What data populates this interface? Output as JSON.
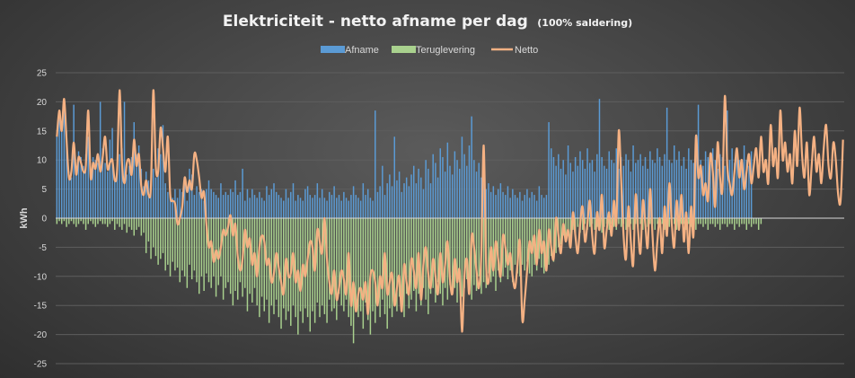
{
  "chart_data": {
    "type": "bar",
    "title": "Elektriciteit  - netto afname per dag",
    "subtitle": "(100% saldering)",
    "ylabel": "kWh",
    "xlabel": "",
    "ylim": [
      -25,
      25
    ],
    "yticks": [
      25,
      20,
      15,
      10,
      5,
      0,
      -5,
      -10,
      -15,
      -20,
      -25
    ],
    "grid": true,
    "legend_position": "top",
    "colors": {
      "afname": "#5b9bd5",
      "teruglevering": "#a9d18e",
      "netto": "#f4b183",
      "grid": "#5e5e5e",
      "zero_line": "#d9d9d9"
    },
    "series": [
      {
        "name": "Afname",
        "type": "bar",
        "values": [
          14.5,
          18.5,
          16.0,
          20.5,
          15.0,
          8.0,
          7.0,
          19.5,
          9.0,
          11.5,
          10.5,
          9.0,
          11.0,
          14.0,
          8.0,
          10.5,
          10.0,
          9.5,
          20.0,
          12.0,
          9.5,
          8.0,
          13.5,
          15.5,
          6.5,
          9.0,
          11.0,
          12.0,
          20.0,
          7.5,
          9.0,
          10.5,
          16.5,
          11.0,
          12.5,
          8.5,
          5.5,
          8.0,
          6.5,
          6.5,
          8.5,
          7.0,
          12.0,
          11.0,
          16.0,
          6.0,
          4.5,
          4.0,
          3.5,
          5.0,
          3.5,
          5.0,
          4.5,
          6.0,
          3.0,
          8.5,
          7.5,
          4.0,
          5.5,
          4.5,
          5.0,
          3.0,
          5.0,
          6.5,
          5.0,
          4.5,
          4.0,
          3.5,
          6.0,
          4.0,
          4.5,
          4.0,
          5.0,
          4.5,
          6.5,
          4.0,
          4.5,
          8.5,
          3.0,
          5.0,
          3.5,
          5.0,
          4.0,
          3.5,
          4.5,
          3.5,
          3.0,
          5.5,
          4.0,
          5.0,
          6.0,
          4.5,
          4.0,
          3.5,
          3.0,
          5.0,
          3.5,
          4.5,
          6.0,
          3.0,
          4.0,
          3.5,
          3.0,
          5.0,
          5.5,
          4.0,
          3.5,
          4.0,
          6.0,
          3.5,
          5.0,
          3.5,
          3.0,
          4.5,
          4.0,
          5.5,
          3.5,
          4.0,
          3.0,
          4.5,
          3.5,
          3.0,
          4.0,
          5.5,
          4.0,
          3.5,
          3.0,
          6.0,
          4.0,
          5.0,
          3.5,
          3.0,
          18.5,
          4.5,
          5.5,
          9.0,
          4.0,
          6.0,
          7.5,
          5.5,
          14.0,
          6.5,
          8.0,
          4.5,
          6.0,
          7.0,
          5.5,
          7.5,
          9.0,
          6.0,
          8.5,
          7.0,
          5.0,
          10.0,
          8.5,
          6.0,
          11.0,
          9.5,
          7.0,
          12.0,
          10.5,
          8.0,
          13.0,
          9.0,
          7.5,
          11.5,
          10.0,
          8.5,
          14.0,
          11.0,
          9.0,
          12.5,
          17.5,
          10.0,
          8.0,
          9.5,
          7.0,
          6.5,
          5.0,
          6.0,
          4.5,
          5.5,
          4.0,
          5.0,
          6.0,
          4.5,
          4.0,
          5.5,
          3.5,
          5.0,
          4.0,
          3.5,
          4.5,
          3.0,
          4.0,
          5.0,
          3.5,
          4.5,
          4.0,
          3.0,
          5.5,
          4.0,
          3.5,
          4.0,
          16.5,
          12.0,
          10.5,
          9.0,
          11.0,
          8.5,
          10.0,
          7.5,
          12.5,
          9.5,
          8.0,
          10.5,
          9.0,
          11.5,
          10.0,
          8.5,
          12.0,
          9.5,
          10.0,
          8.0,
          11.0,
          20.5,
          10.5,
          9.0,
          8.5,
          11.5,
          10.0,
          9.5,
          12.0,
          8.5,
          10.5,
          9.0,
          11.0,
          10.0,
          8.0,
          12.5,
          9.5,
          10.0,
          11.0,
          9.0,
          10.5,
          8.5,
          11.5,
          10.0,
          9.5,
          12.0,
          10.5,
          9.0,
          11.0,
          19.0,
          10.0,
          9.5,
          12.5,
          10.0,
          11.5,
          9.0,
          10.5,
          8.5,
          12.0,
          10.0,
          9.5,
          11.0,
          19.5,
          10.0,
          9.0,
          11.5,
          10.5,
          9.5,
          12.0,
          10.0,
          8.5,
          11.0,
          10.5,
          9.0,
          18.5,
          10.0,
          12.0,
          9.5,
          11.0,
          10.0,
          8.5,
          12.5,
          10.0,
          9.0,
          11.5
        ]
      },
      {
        "name": "Teruglevering",
        "type": "bar",
        "values": [
          -1,
          -0.5,
          -1,
          -0.5,
          -1.5,
          -1,
          -0.5,
          -1,
          -1.5,
          -1,
          -0.5,
          -1,
          -2,
          -1,
          -0.5,
          -1,
          -1.5,
          -1,
          -0.5,
          -1,
          -1,
          -1.5,
          -1,
          -0.5,
          -2,
          -1,
          -1.5,
          -2,
          -1,
          -2.5,
          -1.5,
          -2,
          -3,
          -2,
          -1.5,
          -3,
          -2.5,
          -6,
          -4,
          -7,
          -5,
          -6.5,
          -8,
          -7,
          -6,
          -9,
          -8,
          -10,
          -7.5,
          -9,
          -8.5,
          -11,
          -9,
          -10,
          -12,
          -8,
          -10.5,
          -9,
          -11,
          -13,
          -10,
          -12.5,
          -9.5,
          -11,
          -12,
          -10,
          -13.5,
          -11.5,
          -10,
          -14,
          -12,
          -11,
          -13,
          -15,
          -12.5,
          -14,
          -11,
          -13.5,
          -12,
          -16,
          -13,
          -14.5,
          -12,
          -15,
          -17,
          -13.5,
          -16,
          -14,
          -18,
          -15,
          -16.5,
          -14,
          -17,
          -19,
          -15.5,
          -17.5,
          -16,
          -18.5,
          -15,
          -17,
          -20,
          -16,
          -18,
          -15.5,
          -17,
          -19.5,
          -16,
          -18,
          -14.5,
          -17,
          -15,
          -16.5,
          -18,
          -14,
          -16,
          -15.5,
          -17.5,
          -13,
          -15,
          -16,
          -14,
          -17,
          -18.5,
          -21.5,
          -15,
          -17,
          -16,
          -19,
          -14.5,
          -17.5,
          -20,
          -16,
          -18,
          -15,
          -17,
          -14,
          -16.5,
          -19,
          -15.5,
          -17,
          -14,
          -16,
          -13.5,
          -15,
          -17,
          -13,
          -15.5,
          -14,
          -12.5,
          -16,
          -13,
          -15,
          -12,
          -14,
          -16.5,
          -13,
          -12,
          -14.5,
          -11,
          -13,
          -15,
          -12,
          -14,
          -11.5,
          -13,
          -12,
          -14.5,
          -11,
          -13.5,
          -12,
          -10.5,
          -13,
          -14,
          -11.5,
          -12.5,
          -10,
          -13,
          -11,
          -12,
          -9.5,
          -11,
          -10,
          -12.5,
          -9,
          -11,
          -10,
          -8.5,
          -10.5,
          -9,
          -11,
          -8,
          -9.5,
          -10,
          -8,
          -9,
          -7.5,
          -9.5,
          -10,
          -8,
          -9,
          -7,
          -8.5,
          -9.5,
          -7,
          -8,
          -6.5,
          -7.5,
          -6,
          -5,
          -4.5,
          -3,
          -4,
          -2.5,
          -3.5,
          -2,
          -3,
          -1.5,
          -2.5,
          -2,
          -1,
          -2,
          -1.5,
          -1,
          -2,
          -1.5,
          -1,
          -2.5,
          -1.5,
          -1,
          -2,
          -1,
          -1.5,
          -2,
          -1,
          -1.5,
          -1,
          -2,
          -1.5,
          -1,
          -2,
          -1,
          -1.5,
          -1,
          -2,
          -1,
          -1.5,
          -1,
          -1,
          -2,
          -1,
          -1.5,
          -1,
          -2,
          -1,
          -1.5,
          -1,
          -1,
          -2,
          -1.5,
          -1,
          -1,
          -2,
          -1,
          -1.5,
          -1,
          -2,
          -1,
          -1,
          -1.5,
          -1,
          -2,
          -1,
          -1,
          -1.5,
          -1,
          -2,
          -1,
          -1,
          -1.5,
          -1,
          -1,
          -2,
          -1,
          -1.5,
          -1,
          -1,
          -2,
          -1,
          -1.5,
          -1,
          -1,
          -2,
          -1
        ]
      },
      {
        "name": "Netto",
        "type": "line",
        "values": [
          14,
          18.5,
          15,
          20.5,
          13.5,
          7,
          8,
          13,
          7.5,
          10.5,
          9.5,
          8,
          9,
          18.5,
          7,
          9.5,
          8.5,
          11,
          8,
          10.5,
          14,
          8.5,
          9.5,
          10,
          6.5,
          8.5,
          22,
          9.5,
          6,
          9.5,
          10,
          7.5,
          13.5,
          9,
          11,
          5.5,
          4,
          6.5,
          4,
          5.5,
          22,
          9,
          8,
          15.5,
          12,
          8,
          14,
          4,
          3,
          2.5,
          -1,
          0,
          2,
          7,
          4.5,
          6.5,
          5,
          11,
          10,
          7,
          3.5,
          4.5,
          -1,
          -5,
          -4,
          -7.5,
          -5.5,
          -7,
          -5,
          -2,
          -3,
          -1.5,
          0.5,
          -3,
          -1,
          -6.5,
          -9,
          -7,
          -2,
          -5,
          -3.5,
          -8,
          -6,
          -10,
          -5,
          -3,
          -4,
          -8,
          -7,
          -11,
          -9.5,
          -6,
          -8.5,
          -11,
          -13,
          -7,
          -10,
          -9.5,
          -6,
          -11,
          -9,
          -12.5,
          -8,
          -10,
          -7,
          -4,
          -5,
          -9,
          -2,
          -4,
          -6,
          0,
          -7,
          -11,
          -13,
          -9,
          -14,
          -12,
          -9,
          -10.5,
          -13,
          -6,
          -15,
          -11,
          -16,
          -13,
          -12,
          -14,
          -11,
          -16.5,
          -10,
          -9,
          -11,
          -15,
          -10,
          -12,
          -6,
          -13,
          -11,
          -9.5,
          -15,
          -12,
          -10,
          -16,
          -8,
          -11,
          -13,
          -7,
          -9,
          -12,
          -6,
          -14,
          -8,
          -5,
          -9.5,
          -12,
          -7,
          -10,
          -13,
          -6,
          -11,
          -8,
          -4,
          -10.5,
          -13,
          -7,
          -11,
          -9,
          -19.5,
          -10,
          -7,
          -13,
          -3,
          -5,
          -9,
          -12,
          -6,
          12.5,
          -8,
          -11,
          -5,
          -9,
          -4,
          -7,
          -10,
          -3,
          -5,
          -8,
          -6,
          -10,
          -12,
          -8,
          -4,
          -17.5,
          -14,
          -9,
          -4,
          -6,
          -3,
          -8,
          -2,
          -6,
          -4,
          -9,
          -2,
          -5,
          -7,
          0,
          -3,
          -6,
          -1,
          -4,
          -2,
          -5,
          1,
          -3,
          -6,
          -1,
          2,
          -4,
          -1,
          3,
          -3,
          -6,
          1,
          -2,
          4,
          -5,
          -2,
          1,
          -3,
          3,
          -1,
          15,
          6.5,
          -3,
          -7,
          2,
          -4,
          -8,
          4,
          -2,
          -6,
          3,
          -1,
          -5,
          5,
          -3,
          -9,
          -4,
          0,
          -6,
          2,
          -3,
          6,
          -1,
          -5,
          3,
          -2,
          4,
          -4,
          1,
          -6,
          2,
          -3,
          14,
          7,
          9,
          4,
          6,
          3,
          11,
          8,
          2,
          13,
          7,
          5,
          21,
          9,
          6,
          4,
          8,
          12,
          7,
          10,
          5,
          8,
          11,
          6,
          9,
          12,
          7,
          14,
          8,
          10,
          6,
          16,
          9,
          12,
          7,
          18.5,
          10,
          13,
          8,
          11,
          6,
          15,
          9,
          19,
          11,
          7,
          13,
          4,
          9,
          14,
          8,
          11,
          6,
          12,
          16,
          9,
          7,
          13,
          10,
          4,
          3,
          13.5
        ]
      }
    ]
  }
}
